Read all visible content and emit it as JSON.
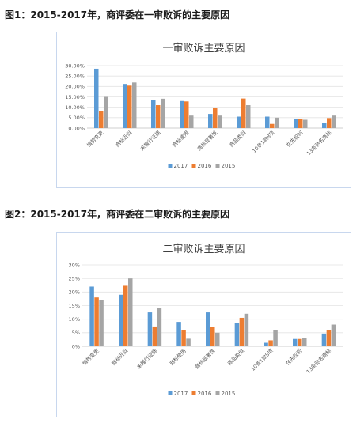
{
  "headings": [
    "图1：2015-2017年，商评委在一审败诉的主要原因",
    "图2：2015-2017年，商评委在二审败诉的主要原因"
  ],
  "colors": {
    "2017": "#5b9bd5",
    "2016": "#ed7d31",
    "2015": "#a5a5a5"
  },
  "chart_data": [
    {
      "type": "bar",
      "title": "一审败诉主要原因",
      "categories": [
        "情势变更",
        "商标近似",
        "未履行证据",
        "商标使用",
        "商标显著性",
        "商品类似",
        "10条1款8项",
        "在先权利",
        "13条驰名商标"
      ],
      "series": [
        {
          "name": "2017",
          "values": [
            28.5,
            21.2,
            13.5,
            13.0,
            6.8,
            5.5,
            5.5,
            4.5,
            2.3
          ]
        },
        {
          "name": "2016",
          "values": [
            8.0,
            20.4,
            11.0,
            12.8,
            9.5,
            14.2,
            2.0,
            4.2,
            4.8
          ]
        },
        {
          "name": "2015",
          "values": [
            15.0,
            21.9,
            14.1,
            6.0,
            6.0,
            11.0,
            5.0,
            4.0,
            6.0
          ]
        }
      ],
      "yticks": [
        "0.00%",
        "5.00%",
        "10.00%",
        "15.00%",
        "20.00%",
        "25.00%",
        "30.00%"
      ],
      "ylim": [
        0,
        30
      ],
      "legend": [
        "2017",
        "2016",
        "2015"
      ],
      "legend_position": "bottom",
      "grid": true
    },
    {
      "type": "bar",
      "title": "二审败诉主要原因",
      "categories": [
        "情势变更",
        "商标近似",
        "未履行证据",
        "商标使用",
        "商标显著性",
        "商品类似",
        "10条1款8项",
        "在先权利",
        "13条驰名商标"
      ],
      "series": [
        {
          "name": "2017",
          "values": [
            22.0,
            19.0,
            12.5,
            9.0,
            12.5,
            8.7,
            1.3,
            2.7,
            4.7
          ]
        },
        {
          "name": "2016",
          "values": [
            18.0,
            22.3,
            7.3,
            6.0,
            7.0,
            10.5,
            2.2,
            2.7,
            6.0
          ]
        },
        {
          "name": "2015",
          "values": [
            17.0,
            25.0,
            14.0,
            2.8,
            5.0,
            12.0,
            6.0,
            3.0,
            8.0
          ]
        }
      ],
      "yticks": [
        "0%",
        "5%",
        "10%",
        "15%",
        "20%",
        "25%",
        "30%"
      ],
      "ylim": [
        0,
        30
      ],
      "legend": [
        "2017",
        "2016",
        "2015"
      ],
      "legend_position": "bottom",
      "grid": true
    }
  ]
}
